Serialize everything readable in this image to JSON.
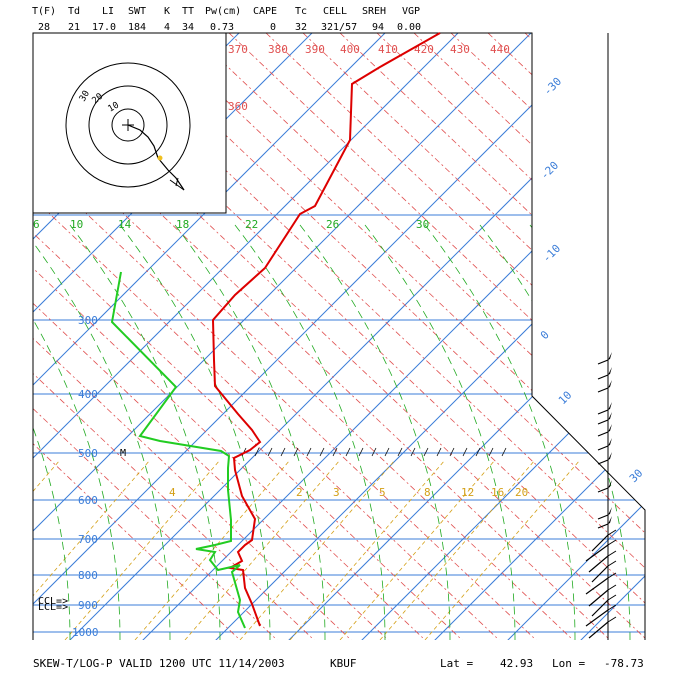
{
  "header": {
    "labels": [
      "T(F)",
      "Td",
      "LI",
      "SWT",
      "K",
      "TT",
      "Pw(cm)",
      "CAPE",
      "Tc",
      "CELL",
      "SREH",
      "VGP"
    ],
    "values": [
      "28",
      "21",
      "17.0",
      "184",
      "4",
      "34",
      "0.73",
      "0",
      "32",
      "321/57",
      "94",
      "0.00"
    ]
  },
  "footer": {
    "title": "SKEW-T/LOG-P VALID 1200 UTC 11/14/2003",
    "station": "KBUF",
    "lat_label": "Lat =",
    "lat": "42.93",
    "lon_label": "Lon =",
    "lon": "-78.73"
  },
  "colors": {
    "temperature": "#dd0000",
    "dewpoint": "#22cc22",
    "isotherm": "#3b7dd8",
    "dry_adiabat": "#e05050",
    "moist_adiabat": "#22aa22",
    "mixing_ratio": "#d4a017",
    "frame": "#000000"
  },
  "chart_data": {
    "type": "line",
    "diagram": "skew-t log-p",
    "y_scale": "log",
    "pressure_levels": [
      300,
      400,
      500,
      600,
      700,
      800,
      900,
      1000
    ],
    "isotherm_labels": [
      "-30",
      "-20",
      "-10",
      "0",
      "10",
      "30"
    ],
    "theta_labels": [
      "370",
      "380",
      "390",
      "400",
      "410",
      "420",
      "430",
      "440",
      "360"
    ],
    "moist_labels": [
      "6",
      "10",
      "14",
      "18",
      "22",
      "26",
      "30"
    ],
    "mixing_labels": [
      "4",
      "2",
      "3",
      "5",
      "8",
      "12",
      "16",
      "20"
    ],
    "series": [
      {
        "name": "Temperature",
        "points": [
          [
            260,
            626
          ],
          [
            252,
            604
          ],
          [
            245,
            588
          ],
          [
            243,
            570
          ],
          [
            230,
            568
          ],
          [
            242,
            561
          ],
          [
            238,
            552
          ],
          [
            245,
            545
          ],
          [
            252,
            540
          ],
          [
            255,
            519
          ],
          [
            242,
            496
          ],
          [
            235,
            470
          ],
          [
            234,
            458
          ],
          [
            250,
            450
          ],
          [
            260,
            442
          ],
          [
            252,
            430
          ],
          [
            238,
            414
          ],
          [
            215,
            386
          ],
          [
            214,
            360
          ],
          [
            213,
            320
          ],
          [
            235,
            295
          ],
          [
            265,
            268
          ],
          [
            300,
            214
          ],
          [
            315,
            206
          ],
          [
            350,
            140
          ],
          [
            352,
            84
          ],
          [
            380,
            67
          ],
          [
            440,
            33
          ]
        ]
      },
      {
        "name": "Dewpoint",
        "points": [
          [
            245,
            628
          ],
          [
            238,
            612
          ],
          [
            240,
            600
          ],
          [
            232,
            572
          ],
          [
            240,
            565
          ],
          [
            218,
            570
          ],
          [
            210,
            560
          ],
          [
            215,
            552
          ],
          [
            196,
            549
          ],
          [
            215,
            545
          ],
          [
            231,
            541
          ],
          [
            231,
            520
          ],
          [
            228,
            490
          ],
          [
            228,
            468
          ],
          [
            229,
            456
          ],
          [
            221,
            451
          ],
          [
            160,
            441
          ],
          [
            140,
            436
          ],
          [
            176,
            387
          ],
          [
            112,
            322
          ],
          [
            121,
            272
          ]
        ]
      }
    ],
    "annotations": [
      "M",
      "CCL=>",
      "LCL=>"
    ]
  }
}
